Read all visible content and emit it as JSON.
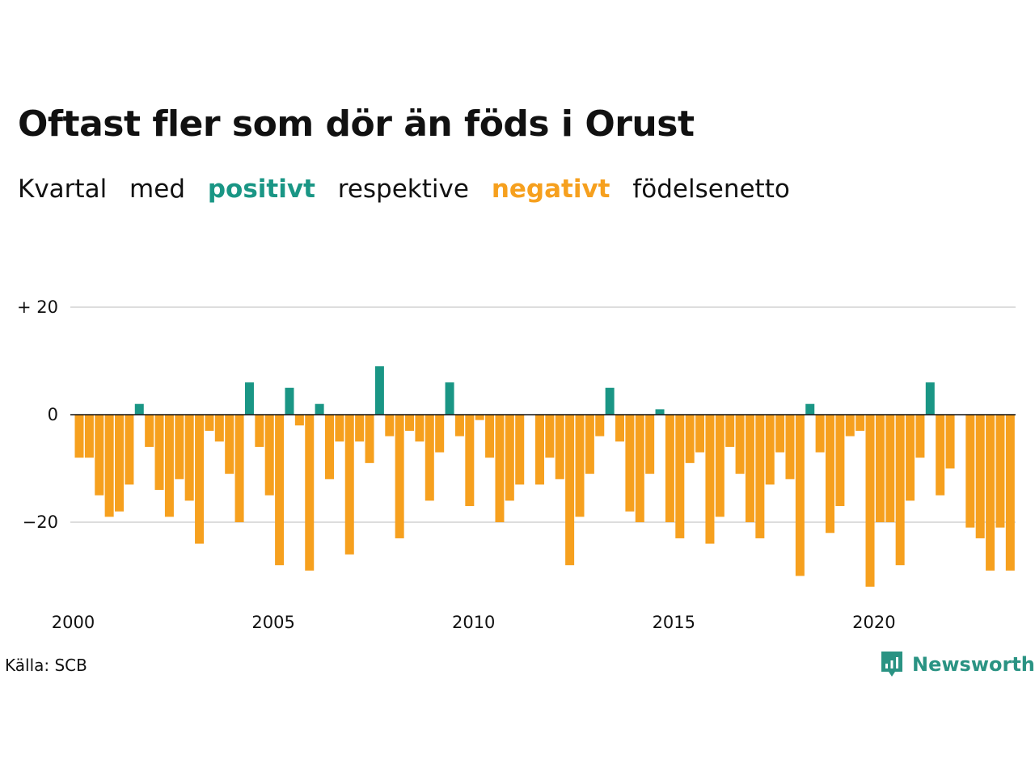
{
  "title": "Oftast fler som dör än föds i Orust",
  "subtitle": {
    "part1": "Kvartal",
    "part2": "med",
    "positive_word": "positivt",
    "part3": "respektive",
    "negative_word": "negativt",
    "part4": "födelsenetto"
  },
  "colors": {
    "positive": "#1a9685",
    "negative": "#f6a01e",
    "gridline": "#dddddd",
    "zeroline": "#111111"
  },
  "source": "Källa: SCB",
  "brand": "Newsworthy",
  "chart_data": {
    "type": "bar",
    "x_unit": "quarter",
    "x_start": "2000 Q1",
    "ylim": [
      -33,
      20
    ],
    "y_ticks": [
      20,
      0,
      -20
    ],
    "y_tick_labels": [
      "+ 20",
      "0",
      "−20"
    ],
    "x_tick_labels": [
      "2000",
      "2005",
      "2010",
      "2015",
      "2020"
    ],
    "grid": true,
    "values": [
      -8,
      -8,
      -15,
      -19,
      -18,
      -13,
      2,
      -6,
      -14,
      -19,
      -12,
      -16,
      -24,
      -3,
      -5,
      -11,
      -20,
      6,
      -6,
      -15,
      -28,
      5,
      -2,
      -29,
      2,
      -12,
      -5,
      -26,
      -5,
      -9,
      9,
      -4,
      -23,
      -3,
      -5,
      -16,
      -7,
      6,
      -4,
      -17,
      -1,
      -8,
      -20,
      -16,
      -13,
      0,
      -13,
      -8,
      -12,
      -28,
      -19,
      -11,
      -4,
      5,
      -5,
      -18,
      -20,
      -11,
      1,
      -20,
      -23,
      -9,
      -7,
      -24,
      -19,
      -6,
      -11,
      -20,
      -23,
      -13,
      -7,
      -12,
      -30,
      2,
      -7,
      -22,
      -17,
      -4,
      -3,
      -32,
      -20,
      -20,
      -28,
      -16,
      -8,
      6,
      -15,
      -10,
      0,
      -21,
      -23,
      -29,
      -21,
      -29
    ]
  }
}
